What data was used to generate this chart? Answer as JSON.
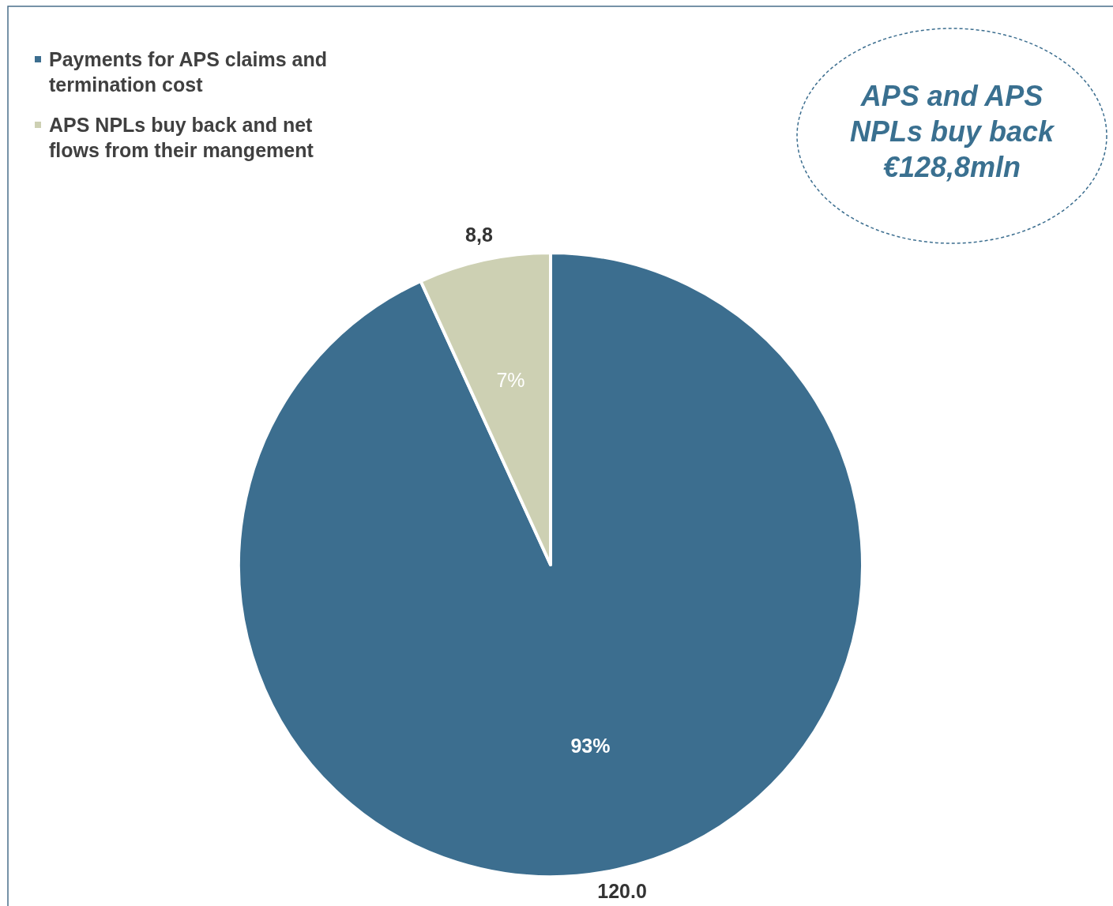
{
  "chart_data": {
    "type": "pie",
    "categories": [
      "Payments for APS claims and termination cost",
      "APS NPLs buy back and net flows from their mangement"
    ],
    "values": [
      120.0,
      8.8
    ],
    "colors": [
      "#3c6e8f",
      "#cdd0b3"
    ],
    "value_labels": [
      "120.0",
      "8,8"
    ],
    "legend": "top left",
    "annotations": [
      {
        "text": "93%",
        "x": "Payments for APS claims and termination cost"
      },
      {
        "text": "7%",
        "x": "APS NPLs buy back and net flows from their mangement"
      },
      "APS and APS\nNPLs buy back\n€128,8mln"
    ]
  }
}
